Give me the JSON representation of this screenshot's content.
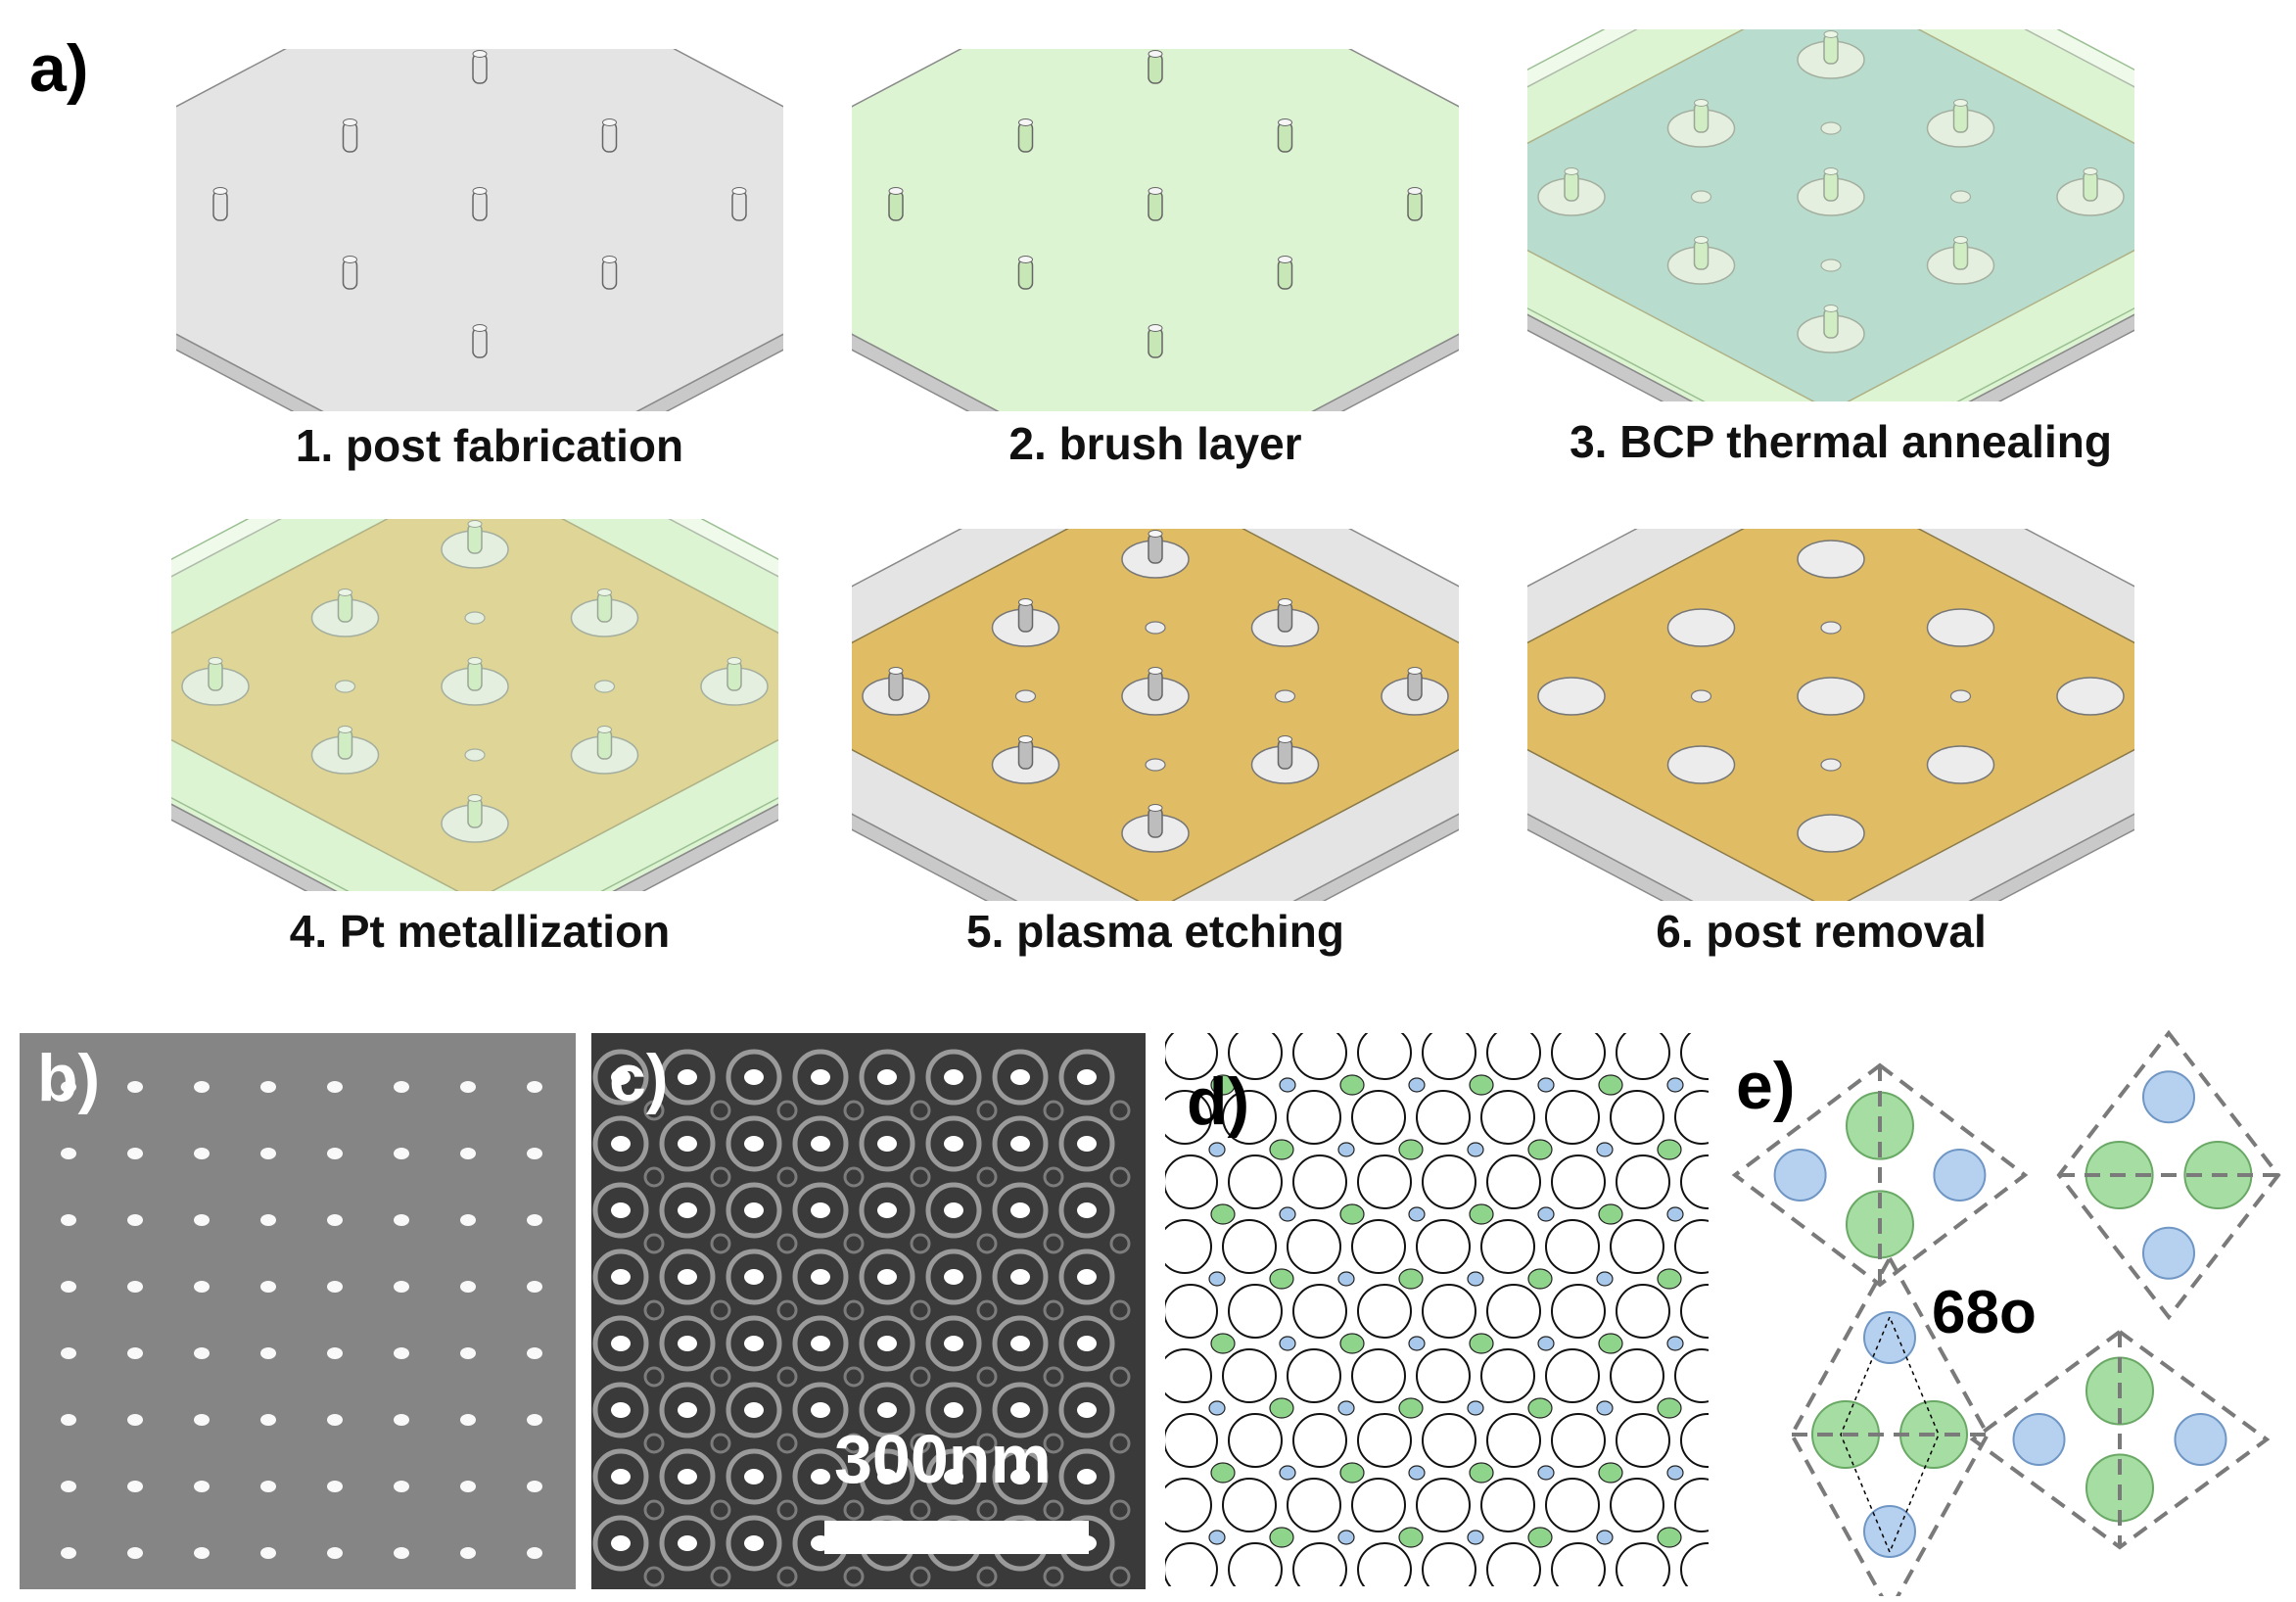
{
  "panel_a": {
    "letter": "a)",
    "steps": [
      {
        "label": "1. post fabrication"
      },
      {
        "label": "2. brush layer"
      },
      {
        "label": "3. BCP thermal annealing"
      },
      {
        "label": "4. Pt metallization"
      },
      {
        "label": "5. plasma etching"
      },
      {
        "label": "6. post removal"
      }
    ]
  },
  "panel_b": {
    "letter": "b)"
  },
  "panel_c": {
    "letter": "c)",
    "scale_bar_label": "300nm"
  },
  "panel_d": {
    "letter": "d)"
  },
  "panel_e": {
    "letter": "e)",
    "angle_label": "68o"
  },
  "colors": {
    "substrate": "#e4e4e4",
    "brush": "#dcf4d2",
    "bcp": "#9cc8c8",
    "platinum": "#e0bc64",
    "post": "#e4e4e4",
    "blue_dot": "#a9c9ec",
    "green_dot": "#8fd48b",
    "dashed": "#7a7a7a"
  }
}
